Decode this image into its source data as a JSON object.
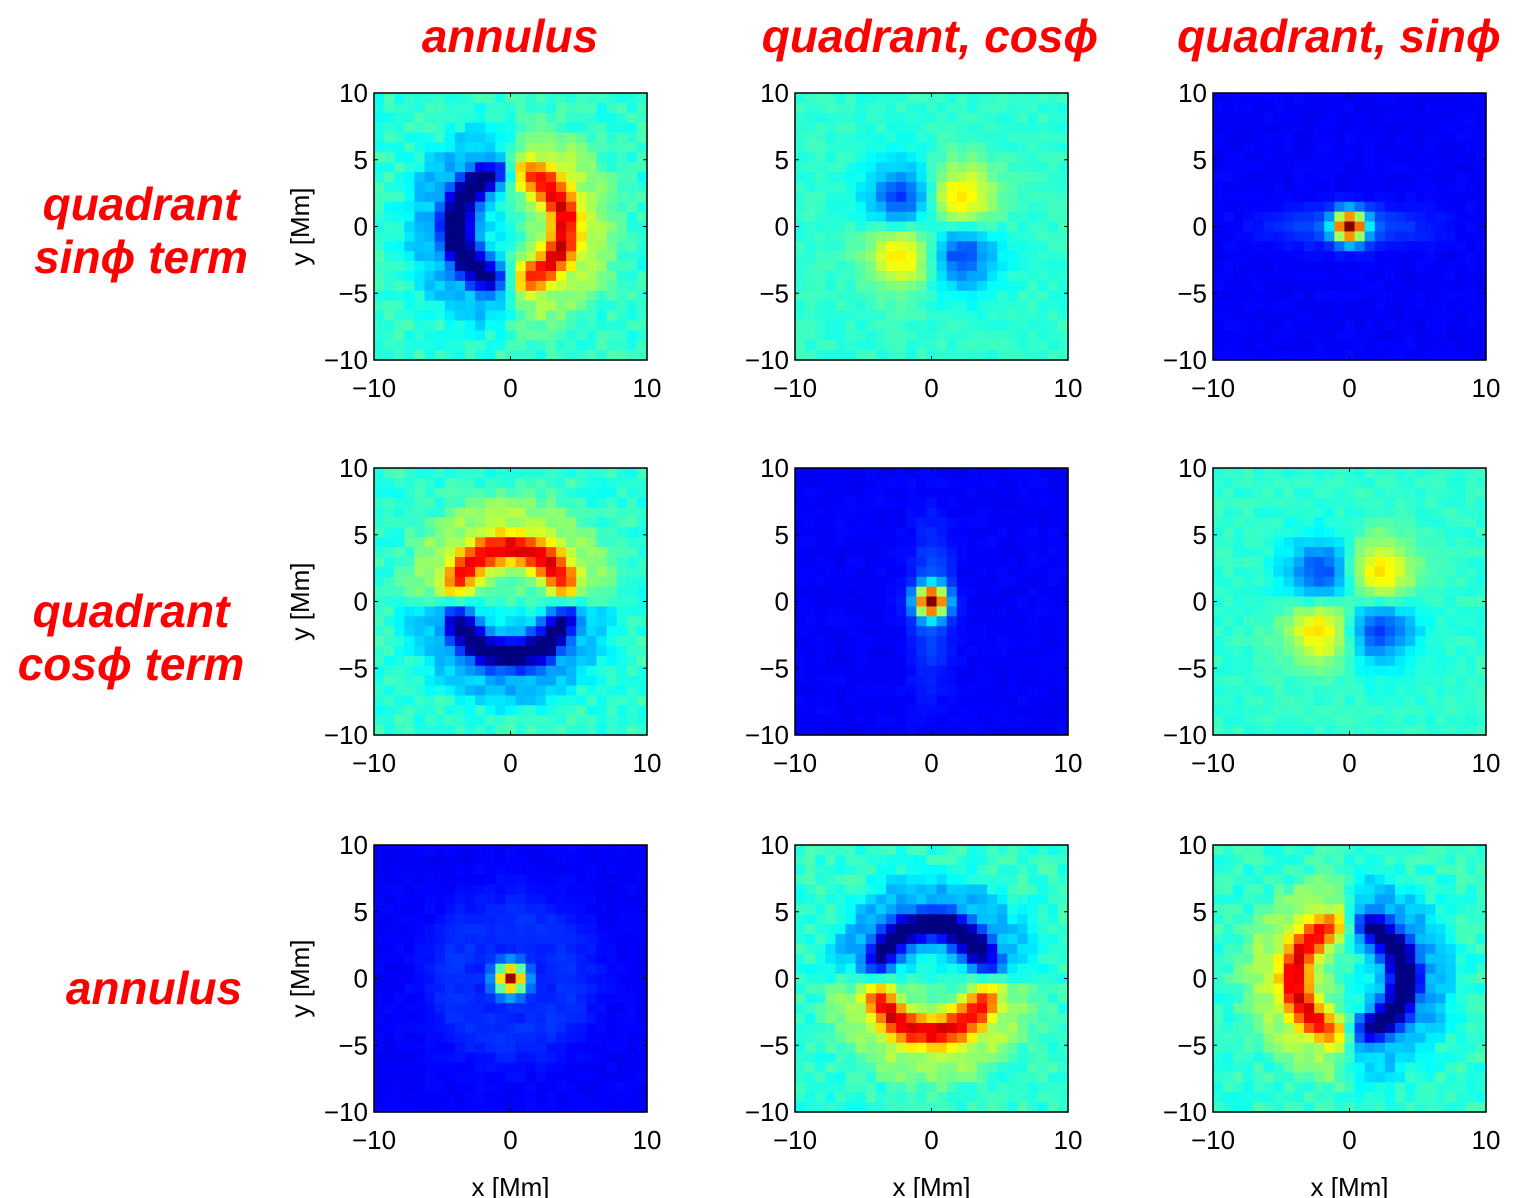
{
  "column_titles": [
    "annulus",
    "quadrant, cosϕ",
    "quadrant, sinϕ"
  ],
  "row_labels": [
    [
      "quadrant",
      "sinϕ  term"
    ],
    [
      "quadrant",
      "cosϕ  term"
    ],
    [
      "annulus"
    ]
  ],
  "chart_data": {
    "type": "heatmap",
    "layout": "3x3 grid of pixelated color maps (jet colormap)",
    "colormap": "jet",
    "xlabel": "x  [Mm]",
    "ylabel": "y  [Mm]",
    "xlim": [
      -10,
      10
    ],
    "ylim": [
      -10,
      10
    ],
    "xticks": [
      -10,
      0,
      10
    ],
    "yticks": [
      -10,
      -5,
      0,
      5,
      10
    ],
    "tick_labels_x": [
      "−10",
      "0",
      "10"
    ],
    "tick_labels_y": [
      "10",
      "5",
      "0",
      "−5",
      "−10"
    ],
    "grid_cells": 27,
    "panels": [
      {
        "row": 0,
        "col": 0,
        "pattern": "dipole_x",
        "sign": 1,
        "base": 0.42
      },
      {
        "row": 0,
        "col": 1,
        "pattern": "quad_xy",
        "sign": 1,
        "base": 0.42
      },
      {
        "row": 0,
        "col": 2,
        "pattern": "peak_x",
        "sign": 1,
        "base": 0.12
      },
      {
        "row": 1,
        "col": 0,
        "pattern": "dipole_y",
        "sign": 1,
        "base": 0.42
      },
      {
        "row": 1,
        "col": 1,
        "pattern": "peak_y",
        "sign": 1,
        "base": 0.12
      },
      {
        "row": 1,
        "col": 2,
        "pattern": "quad_xy",
        "sign": 1,
        "base": 0.42
      },
      {
        "row": 2,
        "col": 0,
        "pattern": "peak_ring",
        "sign": 1,
        "base": 0.12
      },
      {
        "row": 2,
        "col": 1,
        "pattern": "dipole_y",
        "sign": -1,
        "base": 0.42
      },
      {
        "row": 2,
        "col": 2,
        "pattern": "dipole_x",
        "sign": -1,
        "base": 0.42
      }
    ]
  }
}
